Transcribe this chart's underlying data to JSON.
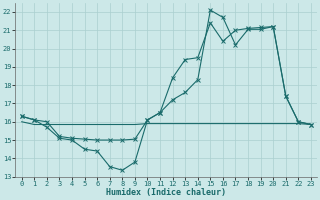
{
  "xlabel": "Humidex (Indice chaleur)",
  "xlim": [
    -0.5,
    23.5
  ],
  "ylim": [
    13,
    22.5
  ],
  "yticks": [
    13,
    14,
    15,
    16,
    17,
    18,
    19,
    20,
    21,
    22
  ],
  "xticks": [
    0,
    1,
    2,
    3,
    4,
    5,
    6,
    7,
    8,
    9,
    10,
    11,
    12,
    13,
    14,
    15,
    16,
    17,
    18,
    19,
    20,
    21,
    22,
    23
  ],
  "background_color": "#cce8e8",
  "grid_color": "#aacfcf",
  "line_color": "#1a6b6b",
  "line1_x": [
    0,
    1,
    2,
    3,
    4,
    5,
    6,
    7,
    8,
    9,
    10,
    11,
    12,
    13,
    14,
    15,
    16,
    17,
    18,
    19,
    20,
    21,
    22,
    23
  ],
  "line1_y": [
    16.3,
    16.1,
    15.7,
    15.1,
    15.0,
    14.5,
    14.4,
    13.55,
    13.35,
    13.8,
    16.1,
    16.5,
    18.4,
    19.4,
    19.5,
    21.4,
    20.4,
    21.0,
    21.1,
    21.15,
    21.2,
    17.4,
    16.0,
    15.85
  ],
  "line2_x": [
    0,
    1,
    2,
    3,
    4,
    5,
    6,
    7,
    8,
    9,
    10,
    11,
    12,
    13,
    14,
    15,
    16,
    17,
    18,
    19,
    20,
    21,
    22,
    23
  ],
  "line2_y": [
    16.0,
    15.85,
    15.85,
    15.85,
    15.85,
    15.85,
    15.85,
    15.85,
    15.85,
    15.85,
    15.9,
    15.9,
    15.9,
    15.9,
    15.9,
    15.9,
    15.9,
    15.9,
    15.9,
    15.9,
    15.9,
    15.9,
    15.9,
    15.85
  ],
  "line3_x": [
    0,
    1,
    2,
    3,
    4,
    5,
    6,
    7,
    8,
    9,
    10,
    11,
    12,
    13,
    14,
    15,
    16,
    17,
    18,
    19,
    20,
    21,
    22,
    23
  ],
  "line3_y": [
    16.3,
    16.1,
    16.0,
    15.2,
    15.1,
    15.05,
    15.0,
    15.0,
    15.0,
    15.05,
    16.1,
    16.5,
    17.2,
    17.6,
    18.3,
    22.1,
    21.7,
    20.2,
    21.05,
    21.05,
    21.2,
    17.4,
    16.0,
    15.85
  ]
}
